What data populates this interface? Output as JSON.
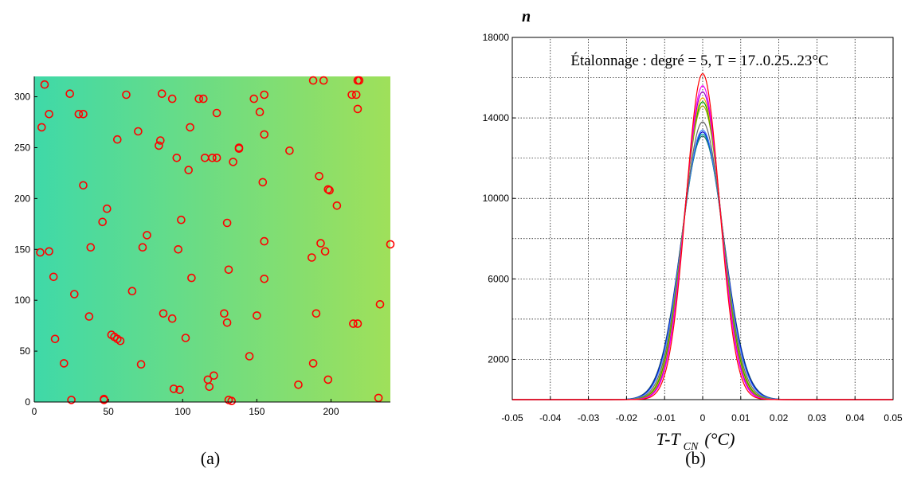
{
  "chart_data": [
    {
      "type": "scatter",
      "panel_label": "(a)",
      "background": {
        "left_color": "#3fd9a8",
        "right_color": "#9fe05a"
      },
      "marker": {
        "shape": "circle-open",
        "color": "#ff0000"
      },
      "xlim": [
        0,
        240
      ],
      "ylim": [
        0,
        320
      ],
      "x_ticks": [
        0,
        50,
        100,
        150,
        200
      ],
      "y_ticks": [
        0,
        50,
        100,
        150,
        200,
        250,
        300
      ],
      "tick_labels_x": [
        "0",
        "50",
        "100",
        "150",
        "200"
      ],
      "tick_labels_y": [
        "0",
        "50",
        "100",
        "150",
        "200",
        "250",
        "300"
      ],
      "points": [
        [
          7,
          312
        ],
        [
          30,
          283
        ],
        [
          33,
          283
        ],
        [
          10,
          283
        ],
        [
          5,
          270
        ],
        [
          24,
          303
        ],
        [
          62,
          302
        ],
        [
          86,
          303
        ],
        [
          93,
          298
        ],
        [
          111,
          298
        ],
        [
          114,
          298
        ],
        [
          155,
          302
        ],
        [
          148,
          298
        ],
        [
          188,
          316
        ],
        [
          195,
          316
        ],
        [
          218,
          316
        ],
        [
          219,
          316
        ],
        [
          217,
          302
        ],
        [
          214,
          302
        ],
        [
          218,
          288
        ],
        [
          152,
          285
        ],
        [
          123,
          284
        ],
        [
          70,
          266
        ],
        [
          56,
          258
        ],
        [
          85,
          257
        ],
        [
          84,
          252
        ],
        [
          105,
          270
        ],
        [
          155,
          263
        ],
        [
          138,
          250
        ],
        [
          138,
          249
        ],
        [
          96,
          240
        ],
        [
          115,
          240
        ],
        [
          120,
          240
        ],
        [
          123,
          240
        ],
        [
          134,
          236
        ],
        [
          172,
          247
        ],
        [
          104,
          228
        ],
        [
          192,
          222
        ],
        [
          154,
          216
        ],
        [
          198,
          209
        ],
        [
          199,
          208
        ],
        [
          33,
          213
        ],
        [
          204,
          193
        ],
        [
          49,
          190
        ],
        [
          46,
          177
        ],
        [
          130,
          176
        ],
        [
          99,
          179
        ],
        [
          76,
          164
        ],
        [
          73,
          152
        ],
        [
          38,
          152
        ],
        [
          97,
          150
        ],
        [
          155,
          158
        ],
        [
          193,
          156
        ],
        [
          196,
          148
        ],
        [
          187,
          142
        ],
        [
          4,
          147
        ],
        [
          10,
          148
        ],
        [
          240,
          155
        ],
        [
          13,
          123
        ],
        [
          106,
          122
        ],
        [
          131,
          130
        ],
        [
          155,
          121
        ],
        [
          66,
          109
        ],
        [
          27,
          106
        ],
        [
          37,
          84
        ],
        [
          87,
          87
        ],
        [
          93,
          82
        ],
        [
          128,
          87
        ],
        [
          130,
          78
        ],
        [
          150,
          85
        ],
        [
          190,
          87
        ],
        [
          233,
          96
        ],
        [
          215,
          77
        ],
        [
          218,
          77
        ],
        [
          52,
          66
        ],
        [
          54,
          64
        ],
        [
          56,
          62
        ],
        [
          58,
          60
        ],
        [
          14,
          62
        ],
        [
          102,
          63
        ],
        [
          20,
          38
        ],
        [
          72,
          37
        ],
        [
          145,
          45
        ],
        [
          188,
          38
        ],
        [
          121,
          26
        ],
        [
          117,
          22
        ],
        [
          118,
          15
        ],
        [
          98,
          12
        ],
        [
          94,
          13
        ],
        [
          178,
          17
        ],
        [
          198,
          22
        ],
        [
          25,
          2
        ],
        [
          47,
          2
        ],
        [
          47,
          3
        ],
        [
          131,
          2
        ],
        [
          133,
          1
        ],
        [
          232,
          4
        ]
      ]
    },
    {
      "type": "line",
      "panel_label": "(b)",
      "annotation": "Étalonnage : degré = 5, T = 17..0.25..23°C",
      "ylabel": "n",
      "xlabel_main": "T-T",
      "xlabel_sub": "CN",
      "xlabel_unit": "(°C)",
      "xlim": [
        -0.05,
        0.05
      ],
      "ylim": [
        0,
        18000
      ],
      "grid": true,
      "x_ticks": [
        -0.05,
        -0.04,
        -0.03,
        -0.02,
        -0.01,
        0,
        0.01,
        0.02,
        0.03,
        0.04,
        0.05
      ],
      "tick_labels_x": [
        "-0.05",
        "-0.04",
        "-0.03",
        "-0.02",
        "-0.01",
        "0",
        "0.01",
        "0.02",
        "0.03",
        "0.04",
        "0.05"
      ],
      "y_ticks": [
        2000,
        6000,
        10000,
        14000,
        18000
      ],
      "tick_labels_y": [
        "2000",
        "6000",
        "10000",
        "14000",
        "18000"
      ],
      "y_gridlines": [
        2000,
        4000,
        6000,
        8000,
        10000,
        12000,
        14000,
        16000,
        18000
      ],
      "series": [
        {
          "color": "#ff0000",
          "peak": 16200,
          "sigma": 0.0044
        },
        {
          "color": "#ff00ff",
          "peak": 15600,
          "sigma": 0.0046
        },
        {
          "color": "#9900cc",
          "peak": 15300,
          "sigma": 0.0047
        },
        {
          "color": "#ffaa00",
          "peak": 15000,
          "sigma": 0.0048
        },
        {
          "color": "#00aa00",
          "peak": 14800,
          "sigma": 0.0049
        },
        {
          "color": "#aaaa00",
          "peak": 14600,
          "sigma": 0.005
        },
        {
          "color": "#666666",
          "peak": 13800,
          "sigma": 0.0052
        },
        {
          "color": "#4488ff",
          "peak": 13400,
          "sigma": 0.0054
        },
        {
          "color": "#0000cc",
          "peak": 13300,
          "sigma": 0.0055
        },
        {
          "color": "#00aaaa",
          "peak": 13200,
          "sigma": 0.0055
        },
        {
          "color": "#226666",
          "peak": 13100,
          "sigma": 0.0056
        }
      ]
    }
  ]
}
